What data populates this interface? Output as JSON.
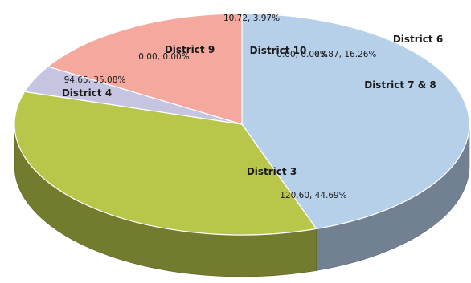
{
  "chart_data": {
    "type": "pie",
    "style": "3d",
    "slices": [
      {
        "name": "District 3",
        "value": 120.6,
        "value_label": "120.60, 44.69%",
        "color": "#b7d0ea"
      },
      {
        "name": "District 4",
        "value": 94.65,
        "value_label": "94.65, 35.08%",
        "color": "#b8c64a"
      },
      {
        "name": "District 9",
        "value": 0.0,
        "value_label": "0.00, 0.00%",
        "color": "#bbbbbb"
      },
      {
        "name": "District 10",
        "value": 10.72,
        "value_label": "10.72, 3.97%",
        "color": "#c5c5e2"
      },
      {
        "name": "District 6",
        "value": 0.0,
        "value_label": "0.00, 0.00%",
        "color": "#ee9b92"
      },
      {
        "name": "District 7 & 8",
        "value": 43.87,
        "value_label": "43.87, 16.26%",
        "color": "#f4a89e"
      }
    ],
    "legend": "none"
  }
}
